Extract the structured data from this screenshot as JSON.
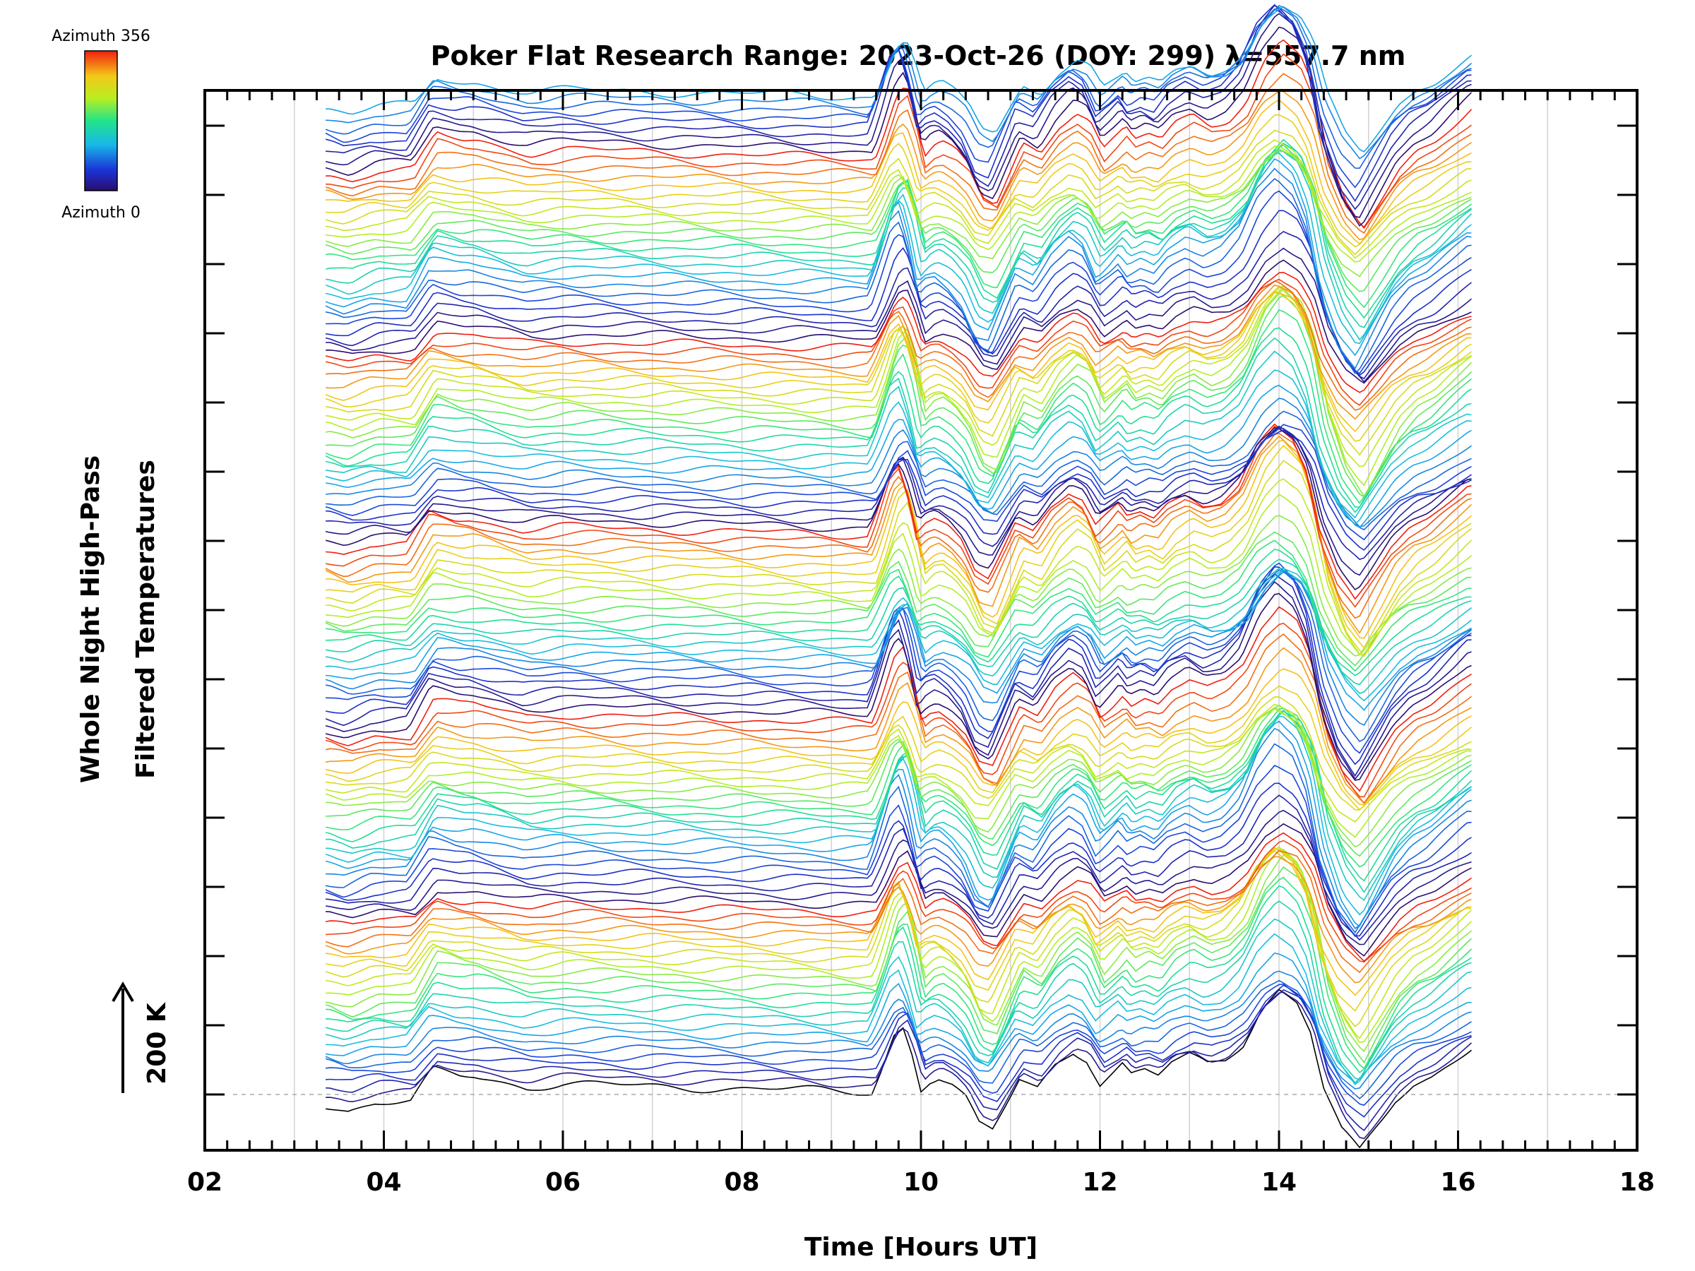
{
  "chart_data": {
    "type": "line",
    "title": "Poker Flat Research Range: 2023-Oct-26 (DOY: 299) λ=557.7 nm",
    "xlabel": "Time [Hours UT]",
    "ylabel_line1": "Whole Night High-Pass",
    "ylabel_line2": "Filtered Temperatures",
    "xlim": [
      2,
      18
    ],
    "x_ticks": [
      "02",
      "04",
      "06",
      "08",
      "10",
      "12",
      "14",
      "16",
      "18"
    ],
    "x_tick_values": [
      2,
      4,
      6,
      8,
      10,
      12,
      14,
      16,
      18
    ],
    "grid_x": [
      3,
      4,
      5,
      6,
      7,
      8,
      9,
      10,
      11,
      12,
      13,
      14,
      15,
      16,
      17
    ],
    "scale_bar_label": "200 K",
    "scale_bar_kelvin": 200,
    "colorbar": {
      "top_label": "Azimuth 356",
      "bottom_label": "Azimuth 0",
      "min": 0,
      "max": 356
    },
    "trace_count": 128,
    "azimuth_count_per_cycle": 24,
    "trace_offset_kelvin": 15,
    "time_start": 3.35,
    "time_end": 16.15,
    "reference_profile": {
      "x": [
        3.35,
        3.6,
        3.9,
        4.3,
        4.55,
        4.7,
        4.85,
        5.0,
        5.3,
        5.6,
        6.0,
        9.45,
        9.55,
        9.7,
        9.8,
        9.9,
        10.0,
        10.1,
        10.2,
        10.35,
        10.5,
        10.65,
        10.8,
        10.95,
        11.1,
        11.3,
        11.5,
        11.7,
        11.85,
        12.0,
        12.15,
        12.25,
        12.35,
        12.5,
        12.65,
        12.8,
        13.0,
        13.2,
        13.4,
        13.6,
        13.8,
        14.0,
        14.2,
        14.35,
        14.5,
        14.7,
        14.9,
        15.1,
        15.3,
        15.5,
        15.7,
        15.9,
        16.15
      ],
      "y": [
        -20,
        -30,
        -15,
        -15,
        45,
        40,
        35,
        35,
        25,
        15,
        20,
        5,
        45,
        115,
        130,
        80,
        10,
        25,
        30,
        15,
        -10,
        -60,
        -70,
        -20,
        30,
        15,
        60,
        85,
        70,
        20,
        40,
        55,
        35,
        45,
        35,
        60,
        75,
        60,
        70,
        100,
        165,
        200,
        175,
        120,
        10,
        -70,
        -110,
        -60,
        -10,
        20,
        35,
        60,
        90
      ]
    },
    "axis_style": {
      "frame": "box",
      "grid": "vertical",
      "legend": "top-left colorbar"
    },
    "colors": {
      "frame": "#000000",
      "grid": "#cccccc",
      "baseline": "#aaaaaa"
    }
  }
}
